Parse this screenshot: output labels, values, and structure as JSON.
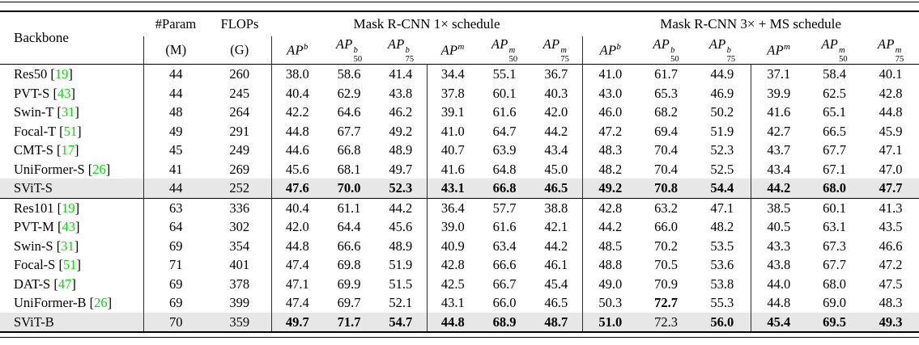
{
  "table": {
    "headers": {
      "backbone": "Backbone",
      "param": "#Param",
      "param_unit": "(M)",
      "flops": "FLOPs",
      "flops_unit": "(G)",
      "group1": "Mask R-CNN 1× schedule",
      "group2": "Mask R-CNN 3× + MS schedule"
    },
    "metrics": [
      {
        "base": "AP",
        "sup": "b",
        "sub": ""
      },
      {
        "base": "AP",
        "sup": "b",
        "sub": "50"
      },
      {
        "base": "AP",
        "sup": "b",
        "sub": "75"
      },
      {
        "base": "AP",
        "sup": "m",
        "sub": ""
      },
      {
        "base": "AP",
        "sup": "m",
        "sub": "50"
      },
      {
        "base": "AP",
        "sup": "m",
        "sub": "75"
      }
    ],
    "blocks": [
      {
        "rows": [
          {
            "name": "Res50",
            "cite": "19",
            "param": "44",
            "flops": "260",
            "vals": [
              "38.0",
              "58.6",
              "41.4",
              "34.4",
              "55.1",
              "36.7",
              "41.0",
              "61.7",
              "44.9",
              "37.1",
              "58.4",
              "40.1"
            ],
            "bold": [],
            "highlight": false
          },
          {
            "name": "PVT-S",
            "cite": "43",
            "param": "44",
            "flops": "245",
            "vals": [
              "40.4",
              "62.9",
              "43.8",
              "37.8",
              "60.1",
              "40.3",
              "43.0",
              "65.3",
              "46.9",
              "39.9",
              "62.5",
              "42.8"
            ],
            "bold": [],
            "highlight": false
          },
          {
            "name": "Swin-T",
            "cite": "31",
            "param": "48",
            "flops": "264",
            "vals": [
              "42.2",
              "64.6",
              "46.2",
              "39.1",
              "61.6",
              "42.0",
              "46.0",
              "68.2",
              "50.2",
              "41.6",
              "65.1",
              "44.8"
            ],
            "bold": [],
            "highlight": false
          },
          {
            "name": "Focal-T",
            "cite": "51",
            "param": "49",
            "flops": "291",
            "vals": [
              "44.8",
              "67.7",
              "49.2",
              "41.0",
              "64.7",
              "44.2",
              "47.2",
              "69.4",
              "51.9",
              "42.7",
              "66.5",
              "45.9"
            ],
            "bold": [],
            "highlight": false
          },
          {
            "name": "CMT-S",
            "cite": "17",
            "param": "45",
            "flops": "249",
            "vals": [
              "44.6",
              "66.8",
              "48.9",
              "40.7",
              "63.9",
              "43.4",
              "48.3",
              "70.4",
              "52.3",
              "43.7",
              "67.7",
              "47.1"
            ],
            "bold": [],
            "highlight": false
          },
          {
            "name": "UniFormer-S",
            "cite": "26",
            "param": "41",
            "flops": "269",
            "vals": [
              "45.6",
              "68.1",
              "49.7",
              "41.6",
              "64.8",
              "45.0",
              "48.2",
              "70.4",
              "52.5",
              "43.4",
              "67.1",
              "47.0"
            ],
            "bold": [],
            "highlight": false
          },
          {
            "name": "SViT-S",
            "cite": null,
            "param": "44",
            "flops": "252",
            "vals": [
              "47.6",
              "70.0",
              "52.3",
              "43.1",
              "66.8",
              "46.5",
              "49.2",
              "70.8",
              "54.4",
              "44.2",
              "68.0",
              "47.7"
            ],
            "bold": [
              0,
              1,
              2,
              3,
              4,
              5,
              6,
              7,
              8,
              9,
              10,
              11
            ],
            "highlight": true
          }
        ]
      },
      {
        "rows": [
          {
            "name": "Res101",
            "cite": "19",
            "param": "63",
            "flops": "336",
            "vals": [
              "40.4",
              "61.1",
              "44.2",
              "36.4",
              "57.7",
              "38.8",
              "42.8",
              "63.2",
              "47.1",
              "38.5",
              "60.1",
              "41.3"
            ],
            "bold": [],
            "highlight": false
          },
          {
            "name": "PVT-M",
            "cite": "43",
            "param": "64",
            "flops": "302",
            "vals": [
              "42.0",
              "64.4",
              "45.6",
              "39.0",
              "61.6",
              "42.1",
              "44.2",
              "66.0",
              "48.2",
              "40.5",
              "63.1",
              "43.5"
            ],
            "bold": [],
            "highlight": false
          },
          {
            "name": "Swin-S",
            "cite": "31",
            "param": "69",
            "flops": "354",
            "vals": [
              "44.8",
              "66.6",
              "48.9",
              "40.9",
              "63.4",
              "44.2",
              "48.5",
              "70.2",
              "53.5",
              "43.3",
              "67.3",
              "46.6"
            ],
            "bold": [],
            "highlight": false
          },
          {
            "name": "Focal-S",
            "cite": "51",
            "param": "71",
            "flops": "401",
            "vals": [
              "47.4",
              "69.8",
              "51.9",
              "42.8",
              "66.6",
              "46.1",
              "48.8",
              "70.5",
              "53.6",
              "43.8",
              "67.7",
              "47.2"
            ],
            "bold": [],
            "highlight": false
          },
          {
            "name": "DAT-S",
            "cite": "47",
            "param": "69",
            "flops": "378",
            "vals": [
              "47.1",
              "69.9",
              "51.5",
              "42.5",
              "66.7",
              "45.4",
              "49.0",
              "70.9",
              "53.8",
              "44.0",
              "68.0",
              "47.5"
            ],
            "bold": [],
            "highlight": false
          },
          {
            "name": "UniFormer-B",
            "cite": "26",
            "param": "69",
            "flops": "399",
            "vals": [
              "47.4",
              "69.7",
              "52.1",
              "43.1",
              "66.0",
              "46.5",
              "50.3",
              "72.7",
              "55.3",
              "44.8",
              "69.0",
              "48.3"
            ],
            "bold": [
              7
            ],
            "highlight": false
          },
          {
            "name": "SViT-B",
            "cite": null,
            "param": "70",
            "flops": "359",
            "vals": [
              "49.7",
              "71.7",
              "54.7",
              "44.8",
              "68.9",
              "48.7",
              "51.0",
              "72.3",
              "56.0",
              "45.4",
              "69.5",
              "49.3"
            ],
            "bold": [
              0,
              1,
              2,
              3,
              4,
              5,
              6,
              8,
              9,
              10,
              11
            ],
            "highlight": true
          }
        ]
      }
    ]
  },
  "colors": {
    "row_highlight": "#e7e7e7",
    "citation_green": "#00df00",
    "text": "#000000",
    "rule": "#000000"
  }
}
